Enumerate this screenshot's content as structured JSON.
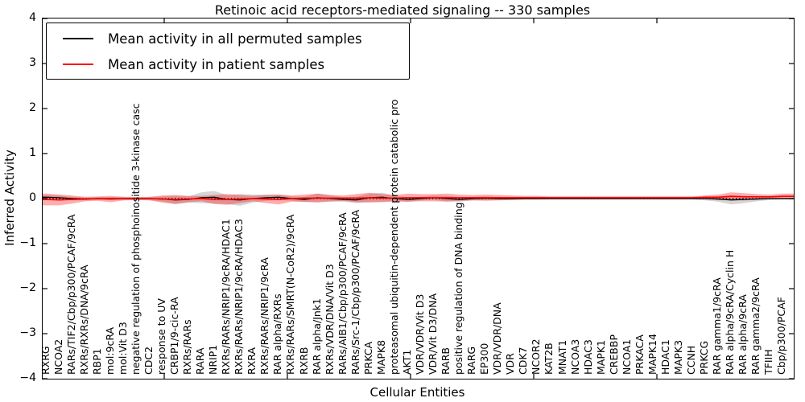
{
  "chart_data": {
    "type": "line",
    "title": "Retinoic acid receptors-mediated signaling -- 330 samples",
    "xlabel": "Cellular Entities",
    "ylabel": "Inferred Activity",
    "ylim": [
      -4,
      4
    ],
    "yticks": [
      "4",
      "3",
      "2",
      "1",
      "0",
      "−1",
      "−2",
      "−3",
      "−4"
    ],
    "ytick_values": [
      4,
      3,
      2,
      1,
      0,
      -1,
      -2,
      -3,
      -4
    ],
    "grid": false,
    "legend_position": "upper left",
    "zero_line": {
      "style": "dotted",
      "color": "#000000",
      "y": 0
    },
    "categories": [
      "RXRG",
      "NCOA2",
      "RARs/TIF2/Cbp/p300/PCAF/9cRA",
      "RXRs/RXRs/DNA/9cRA",
      "RBP1",
      "mol:9cRA",
      "mol:Vit D3",
      "negative regulation of phosphoinositide 3-kinase casc",
      "CDC2",
      "response to UV",
      "CRBP1/9-cic-RA",
      "RXRs/RARs",
      "RARA",
      "NRIP1",
      "RXRs/RARs/NRIP1/9cRA/HDAC1",
      "RXRs/RARs/NRIP1/9cRA/HDAC3",
      "RXRA",
      "RXRs/RARs/NRIP1/9cRA",
      "RAR alpha/RXRs",
      "RXRs/RARs/SMRT(N-CoR2)/9cRA",
      "RXRB",
      "RAR alpha/Jnk1",
      "RXRs/VDR/DNA/Vit D3",
      "RARs/AIB1/Cbp/p300/PCAF/9cRA",
      "RARs/Src-1/Cbp/p300/PCAF/9cRA",
      "PRKCA",
      "MAPK8",
      "proteasomal ubiquitin-dependent protein catabolic pro",
      "AKT1",
      "VDR/VDR/Vit D3",
      "VDR/Vit D3/DNA",
      "RARB",
      "positive regulation of DNA binding",
      "RARG",
      "EP300",
      "VDR/VDR/DNA",
      "VDR",
      "CDK7",
      "NCOR2",
      "KAT2B",
      "MNAT1",
      "NCOA3",
      "HDAC3",
      "MAPK1",
      "CREBBP",
      "NCOA1",
      "PRKACA",
      "MAPK14",
      "HDAC1",
      "MAPK3",
      "CCNH",
      "PRKCG",
      "RAR gamma1/9cRA",
      "RAR alpha/9cRA/Cyclin H",
      "RAR alpha/9cRA",
      "RAR gamma2/9cRA",
      "TFIIH",
      "Cbp/p300/PCAF"
    ],
    "series": [
      {
        "name": "Mean activity in all permuted samples",
        "color": "#000000",
        "band_color": "#888888",
        "band_opacity": 0.35,
        "mean": [
          0.03,
          0.02,
          0.0,
          -0.01,
          0.0,
          0.0,
          0.0,
          0.0,
          0.0,
          -0.01,
          -0.03,
          -0.02,
          0.02,
          0.03,
          -0.02,
          -0.03,
          0.0,
          0.02,
          0.03,
          0.0,
          -0.02,
          0.02,
          0.0,
          -0.02,
          -0.03,
          0.02,
          0.03,
          0.0,
          -0.02,
          0.0,
          0.02,
          0.0,
          -0.02,
          0.0,
          0.01,
          0.0,
          0.0,
          0.0,
          0.0,
          0.0,
          0.0,
          0.0,
          0.0,
          0.0,
          0.0,
          0.0,
          0.0,
          0.0,
          0.0,
          0.0,
          0.0,
          0.0,
          -0.01,
          -0.03,
          -0.02,
          -0.01,
          0.0,
          0.0
        ],
        "std": [
          0.05,
          0.05,
          0.04,
          0.03,
          0.03,
          0.03,
          0.03,
          0.03,
          0.03,
          0.06,
          0.09,
          0.07,
          0.12,
          0.14,
          0.1,
          0.13,
          0.09,
          0.07,
          0.06,
          0.05,
          0.06,
          0.09,
          0.07,
          0.05,
          0.07,
          0.09,
          0.1,
          0.06,
          0.05,
          0.04,
          0.05,
          0.06,
          0.05,
          0.04,
          0.04,
          0.03,
          0.03,
          0.02,
          0.02,
          0.02,
          0.02,
          0.02,
          0.02,
          0.02,
          0.02,
          0.02,
          0.02,
          0.02,
          0.02,
          0.02,
          0.02,
          0.04,
          0.06,
          0.1,
          0.08,
          0.05,
          0.03,
          0.02
        ]
      },
      {
        "name": "Mean activity in patient samples",
        "color": "#ff0000",
        "band_color": "#ff0000",
        "band_opacity": 0.32,
        "mean": [
          -0.02,
          -0.03,
          -0.02,
          -0.01,
          0.0,
          -0.01,
          0.0,
          0.0,
          0.0,
          -0.01,
          -0.02,
          -0.01,
          0.0,
          -0.02,
          -0.02,
          -0.01,
          0.0,
          -0.01,
          -0.02,
          0.0,
          0.01,
          0.01,
          0.01,
          0.01,
          0.01,
          0.02,
          0.01,
          0.01,
          0.02,
          0.02,
          0.02,
          0.02,
          0.02,
          0.02,
          0.02,
          0.02,
          0.02,
          0.02,
          0.02,
          0.02,
          0.02,
          0.02,
          0.02,
          0.02,
          0.02,
          0.02,
          0.02,
          0.02,
          0.02,
          0.02,
          0.02,
          0.03,
          0.03,
          0.05,
          0.04,
          0.04,
          0.04,
          0.05
        ],
        "std": [
          0.13,
          0.12,
          0.09,
          0.05,
          0.05,
          0.07,
          0.04,
          0.03,
          0.04,
          0.08,
          0.1,
          0.07,
          0.06,
          0.1,
          0.12,
          0.09,
          0.06,
          0.09,
          0.11,
          0.07,
          0.08,
          0.1,
          0.07,
          0.06,
          0.09,
          0.11,
          0.09,
          0.07,
          0.09,
          0.08,
          0.08,
          0.09,
          0.07,
          0.06,
          0.07,
          0.06,
          0.05,
          0.04,
          0.04,
          0.03,
          0.03,
          0.03,
          0.03,
          0.03,
          0.03,
          0.03,
          0.03,
          0.03,
          0.03,
          0.03,
          0.03,
          0.04,
          0.06,
          0.09,
          0.08,
          0.06,
          0.05,
          0.06
        ]
      }
    ]
  },
  "legend": {
    "entries": [
      {
        "label": "Mean activity in all permuted samples",
        "color": "#000000"
      },
      {
        "label": "Mean activity in patient samples",
        "color": "#ff0000"
      }
    ]
  }
}
